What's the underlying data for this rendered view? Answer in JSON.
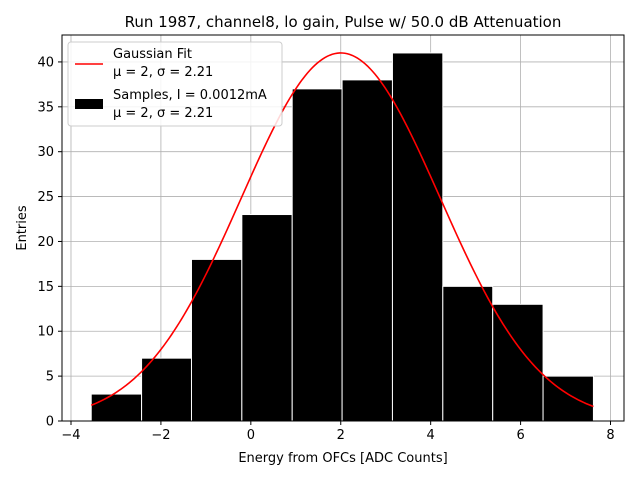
{
  "chart_data": {
    "type": "bar",
    "title": "Run 1987, channel8, lo gain, Pulse w/ 50.0 dB Attenuation",
    "xlabel": "Energy from OFCs [ADC Counts]",
    "ylabel": "Entries",
    "xlim": [
      -4.2,
      8.3
    ],
    "ylim": [
      0,
      43
    ],
    "xticks": [
      -4,
      -2,
      0,
      2,
      4,
      6,
      8
    ],
    "yticks": [
      0,
      5,
      10,
      15,
      20,
      25,
      30,
      35,
      40
    ],
    "grid": true,
    "legend_position": "top-left",
    "bins": [
      {
        "x0": -3.55,
        "x1": -2.43,
        "count": 3
      },
      {
        "x0": -2.43,
        "x1": -1.32,
        "count": 7
      },
      {
        "x0": -1.32,
        "x1": -0.2,
        "count": 18
      },
      {
        "x0": -0.2,
        "x1": 0.92,
        "count": 23
      },
      {
        "x0": 0.92,
        "x1": 2.03,
        "count": 37
      },
      {
        "x0": 2.03,
        "x1": 3.15,
        "count": 38
      },
      {
        "x0": 3.15,
        "x1": 4.27,
        "count": 41
      },
      {
        "x0": 4.27,
        "x1": 5.38,
        "count": 15
      },
      {
        "x0": 5.38,
        "x1": 6.5,
        "count": 13
      },
      {
        "x0": 6.5,
        "x1": 7.62,
        "count": 5
      }
    ],
    "fit": {
      "mu": 2.0,
      "sigma": 2.21,
      "amplitude": 41,
      "x_range": [
        -3.55,
        7.62
      ]
    },
    "legend": [
      {
        "line1": "Gaussian Fit",
        "line2": "μ = 2, σ = 2.21",
        "color": "#ff0000",
        "kind": "line"
      },
      {
        "line1": "Samples, I = 0.0012mA",
        "line2": "μ = 2, σ = 2.21",
        "color": "#000000",
        "kind": "bar"
      }
    ]
  }
}
